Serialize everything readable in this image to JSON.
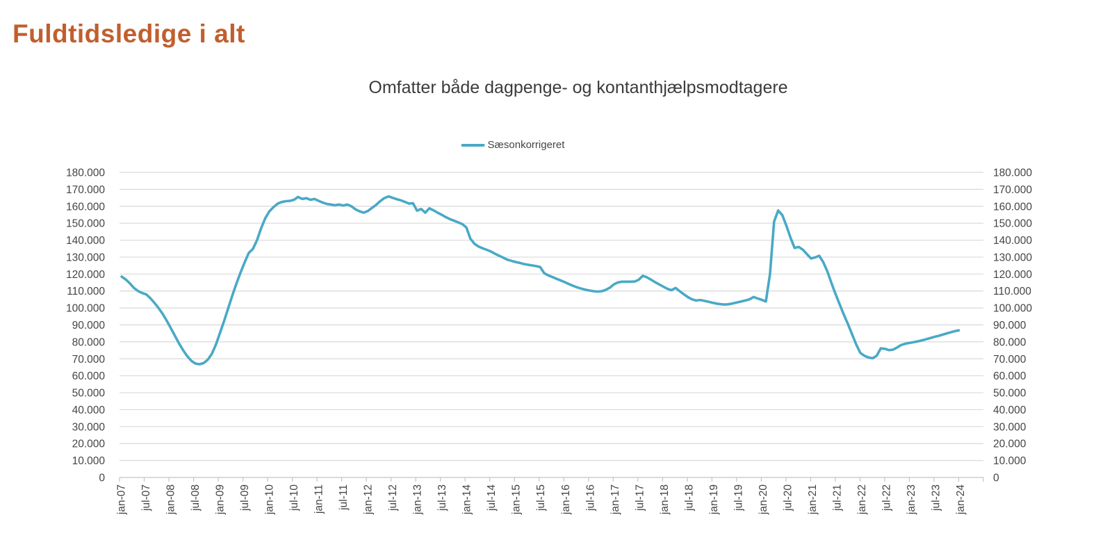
{
  "page_title": "Fuldtidsledige i alt",
  "chart": {
    "subtitle": "Omfatter både dagpenge- og kontanthjælpsmodtagere",
    "legend_label": "Sæsonkorrigeret",
    "colors": {
      "title": "#C15E2E",
      "line": "#49A9C6",
      "text": "#444444",
      "grid": "#D9D9D9",
      "axis": "#C3C3C3"
    }
  },
  "chart_data": {
    "type": "line",
    "title": "Fuldtidsledige i alt",
    "subtitle": "Omfatter både dagpenge- og kontanthjælpsmodtagere",
    "legend_position": "top-center",
    "grid": "horizontal-only",
    "x_axis": {
      "unit": "month",
      "start": "jan-07",
      "end": "jan-24",
      "tick_labels": [
        "jan-07",
        "jul-07",
        "jan-08",
        "jul-08",
        "jan-09",
        "jul-09",
        "jan-10",
        "jul-10",
        "jan-11",
        "jul-11",
        "jan-12",
        "jul-12",
        "jan-13",
        "jul-13",
        "jan-14",
        "jul-14",
        "jan-15",
        "jul-15",
        "jan-16",
        "jul-16",
        "jan-17",
        "jul-17",
        "jan-18",
        "jul-18",
        "jan-19",
        "jul-19",
        "jan-20",
        "jul-20",
        "jan-21",
        "jul-21",
        "jan-22",
        "jul-22",
        "jan-23",
        "jul-23",
        "jan-24"
      ]
    },
    "y_axis": {
      "min": 0,
      "max": 180000,
      "step": 10000,
      "labels_on_both_sides": true,
      "tick_labels": [
        "0",
        "10.000",
        "20.000",
        "30.000",
        "40.000",
        "50.000",
        "60.000",
        "70.000",
        "80.000",
        "90.000",
        "100.000",
        "110.000",
        "120.000",
        "130.000",
        "140.000",
        "150.000",
        "160.000",
        "170.000",
        "180.000"
      ]
    },
    "series": [
      {
        "name": "Sæsonkorrigeret",
        "frequency": "monthly",
        "start_month": "2007-01",
        "end_month": "2024-01",
        "values": [
          118500,
          116800,
          114500,
          111800,
          110000,
          108800,
          108000,
          105800,
          103000,
          100000,
          96500,
          92500,
          88000,
          83500,
          79000,
          75000,
          71500,
          68800,
          67200,
          66800,
          67500,
          69500,
          73000,
          78500,
          85500,
          92500,
          100000,
          107500,
          114500,
          121000,
          127000,
          132500,
          134800,
          140000,
          147000,
          153000,
          157000,
          159500,
          161500,
          162500,
          163000,
          163200,
          163800,
          165500,
          164300,
          164800,
          163800,
          164300,
          163200,
          162200,
          161400,
          161000,
          160600,
          161000,
          160400,
          161000,
          160000,
          158200,
          157000,
          156200,
          157200,
          159000,
          160800,
          163000,
          164800,
          165800,
          165000,
          164200,
          163500,
          162600,
          161600,
          161800,
          157400,
          158400,
          156200,
          158800,
          157600,
          156200,
          155000,
          153600,
          152400,
          151500,
          150500,
          149500,
          147500,
          140800,
          137800,
          136200,
          135200,
          134300,
          133300,
          132000,
          130800,
          129700,
          128500,
          127800,
          127100,
          126600,
          125900,
          125500,
          125100,
          124700,
          124100,
          120500,
          119200,
          118200,
          117200,
          116200,
          115200,
          114100,
          113100,
          112200,
          111400,
          110800,
          110300,
          109900,
          109700,
          109900,
          110700,
          112000,
          114000,
          115100,
          115500,
          115500,
          115500,
          115600,
          116600,
          119000,
          118100,
          116700,
          115200,
          113900,
          112600,
          111300,
          110500,
          111800,
          109900,
          108100,
          106400,
          105100,
          104400,
          104700,
          104200,
          103700,
          103100,
          102600,
          102200,
          102000,
          102200,
          102700,
          103300,
          103800,
          104400,
          105100,
          106500,
          105600,
          104800,
          103800,
          120000,
          151000,
          157500,
          154800,
          148500,
          141500,
          135400,
          136000,
          134400,
          131800,
          129200,
          129800,
          130800,
          127000,
          121500,
          114500,
          108000,
          102000,
          96000,
          90500,
          84500,
          78500,
          73500,
          71800,
          70800,
          70300,
          71800,
          76200,
          75900,
          75100,
          75400,
          76700,
          78200,
          78900,
          79400,
          79800,
          80300,
          80900,
          81500,
          82200,
          82900,
          83500,
          84200,
          84900,
          85600,
          86300,
          86800
        ]
      }
    ]
  }
}
